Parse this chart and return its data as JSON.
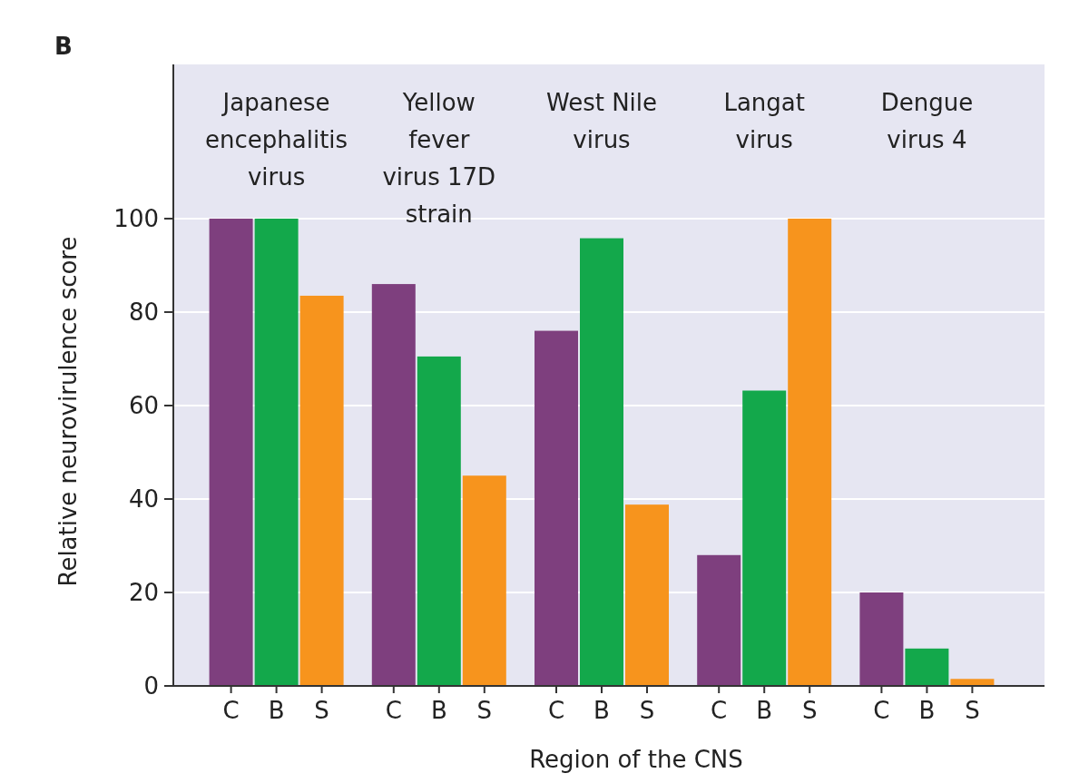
{
  "chart_data": {
    "type": "bar",
    "xlabel": "Region of the CNS",
    "ylabel": "Relative neurovirulence score",
    "categories": [
      "C",
      "B",
      "S",
      "C",
      "B",
      "S",
      "C",
      "B",
      "S",
      "C",
      "B",
      "S",
      "C",
      "B",
      "S"
    ],
    "values": [
      100,
      100,
      83.5,
      86,
      70.5,
      45,
      76,
      95.8,
      38.8,
      28,
      63.2,
      100,
      20,
      8,
      1.5
    ],
    "colors": [
      "#7e3f7e",
      "#13a84b",
      "#f7941d",
      "#7e3f7e",
      "#13a84b",
      "#f7941d",
      "#7e3f7e",
      "#13a84b",
      "#f7941d",
      "#7e3f7e",
      "#13a84b",
      "#f7941d",
      "#7e3f7e",
      "#13a84b",
      "#f7941d"
    ],
    "ylim": [
      0,
      133
    ],
    "yticks": [
      0,
      20,
      40,
      60,
      80,
      100
    ],
    "grid": "y",
    "annotations": [
      "B",
      "Japanese encephalitis virus",
      "Yellow fever virus 17D strain",
      "West Nile virus",
      "Langat virus",
      "Dengue virus 4"
    ]
  }
}
